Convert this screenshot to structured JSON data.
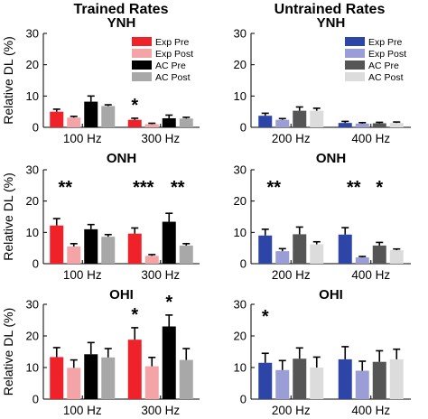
{
  "columns": {
    "left_title": "Trained Rates",
    "right_title": "Untrained Rates"
  },
  "ylabel": "Relative DL (%)",
  "chart_data": [
    {
      "type": "bar",
      "title": "YNH",
      "categories": [
        "100 Hz",
        "300 Hz"
      ],
      "ylim": [
        0,
        30
      ],
      "yticks": [
        0,
        10,
        20,
        30
      ],
      "series": [
        {
          "name": "Exp Pre",
          "color": "#ee2228",
          "values": [
            5.0,
            2.4
          ],
          "errors": [
            0.8,
            0.5
          ]
        },
        {
          "name": "Exp Post",
          "color": "#f4a3a6",
          "values": [
            3.1,
            1.0
          ],
          "errors": [
            0.4,
            0.3
          ]
        },
        {
          "name": "AC Pre",
          "color": "#000000",
          "values": [
            8.2,
            2.9
          ],
          "errors": [
            1.8,
            1.0
          ]
        },
        {
          "name": "AC Post",
          "color": "#a8a8a8",
          "values": [
            6.8,
            2.8
          ],
          "errors": [
            0.4,
            0.4
          ]
        }
      ],
      "significance": [
        {
          "text": "*",
          "category": 1,
          "series": 0
        }
      ],
      "legend": "top-right"
    },
    {
      "type": "bar",
      "title": "YNH",
      "categories": [
        "200 Hz",
        "400 Hz"
      ],
      "ylim": [
        0,
        30
      ],
      "yticks": [
        0,
        10,
        20,
        30
      ],
      "series": [
        {
          "name": "Exp Pre",
          "color": "#2e45a8",
          "values": [
            3.7,
            1.4
          ],
          "errors": [
            0.8,
            0.5
          ]
        },
        {
          "name": "Exp Post",
          "color": "#9b9dd6",
          "values": [
            2.4,
            1.2
          ],
          "errors": [
            0.4,
            0.3
          ]
        },
        {
          "name": "AC Pre",
          "color": "#555555",
          "values": [
            5.3,
            1.3
          ],
          "errors": [
            1.2,
            0.3
          ]
        },
        {
          "name": "AC Post",
          "color": "#dcdcdc",
          "values": [
            5.3,
            1.4
          ],
          "errors": [
            0.8,
            0.3
          ]
        }
      ],
      "significance": [],
      "legend": "top-right"
    },
    {
      "type": "bar",
      "title": "ONH",
      "categories": [
        "100 Hz",
        "300 Hz"
      ],
      "ylim": [
        0,
        30
      ],
      "yticks": [
        0,
        10,
        20,
        30
      ],
      "series": [
        {
          "name": "Exp Pre",
          "color": "#ee2228",
          "values": [
            12.2,
            9.6
          ],
          "errors": [
            2.2,
            1.8
          ]
        },
        {
          "name": "Exp Post",
          "color": "#f4a3a6",
          "values": [
            5.5,
            2.5
          ],
          "errors": [
            0.9,
            0.4
          ]
        },
        {
          "name": "AC Pre",
          "color": "#000000",
          "values": [
            11.0,
            13.4
          ],
          "errors": [
            1.5,
            2.7
          ]
        },
        {
          "name": "AC Post",
          "color": "#a8a8a8",
          "values": [
            8.6,
            5.8
          ],
          "errors": [
            0.7,
            0.6
          ]
        }
      ],
      "significance": [
        {
          "text": "**",
          "category": 0,
          "series": 0
        },
        {
          "text": "***",
          "category": 1,
          "series": 0
        },
        {
          "text": "**",
          "category": 1,
          "series": 2
        }
      ]
    },
    {
      "type": "bar",
      "title": "ONH",
      "categories": [
        "200 Hz",
        "400 Hz"
      ],
      "ylim": [
        0,
        30
      ],
      "yticks": [
        0,
        10,
        20,
        30
      ],
      "series": [
        {
          "name": "Exp Pre",
          "color": "#2e45a8",
          "values": [
            9.0,
            9.3
          ],
          "errors": [
            2.0,
            2.2
          ]
        },
        {
          "name": "Exp Post",
          "color": "#9b9dd6",
          "values": [
            4.0,
            2.0
          ],
          "errors": [
            0.8,
            0.3
          ]
        },
        {
          "name": "AC Pre",
          "color": "#555555",
          "values": [
            9.4,
            5.8
          ],
          "errors": [
            2.3,
            1.0
          ]
        },
        {
          "name": "AC Post",
          "color": "#dcdcdc",
          "values": [
            6.2,
            4.3
          ],
          "errors": [
            0.8,
            0.4
          ]
        }
      ],
      "significance": [
        {
          "text": "**",
          "category": 0,
          "series": 0
        },
        {
          "text": "**",
          "category": 1,
          "series": 0
        },
        {
          "text": "*",
          "category": 1,
          "series": 2
        }
      ]
    },
    {
      "type": "bar",
      "title": "OHI",
      "categories": [
        "100 Hz",
        "300 Hz"
      ],
      "ylim": [
        0,
        30
      ],
      "yticks": [
        0,
        10,
        20,
        30
      ],
      "series": [
        {
          "name": "Exp Pre",
          "color": "#ee2228",
          "values": [
            13.3,
            18.8
          ],
          "errors": [
            3.0,
            3.8
          ]
        },
        {
          "name": "Exp Post",
          "color": "#f4a3a6",
          "values": [
            9.9,
            10.4
          ],
          "errors": [
            2.5,
            2.8
          ]
        },
        {
          "name": "AC Pre",
          "color": "#000000",
          "values": [
            14.2,
            23.0
          ],
          "errors": [
            3.7,
            3.6
          ]
        },
        {
          "name": "AC Post",
          "color": "#a8a8a8",
          "values": [
            13.2,
            12.4
          ],
          "errors": [
            2.8,
            3.6
          ]
        }
      ],
      "significance": [
        {
          "text": "*",
          "category": 1,
          "series": 0
        },
        {
          "text": "*",
          "category": 1,
          "series": 2
        }
      ]
    },
    {
      "type": "bar",
      "title": "OHI",
      "categories": [
        "200 Hz",
        "400 Hz"
      ],
      "ylim": [
        0,
        30
      ],
      "yticks": [
        0,
        10,
        20,
        30
      ],
      "series": [
        {
          "name": "Exp Pre",
          "color": "#2e45a8",
          "values": [
            11.5,
            12.6
          ],
          "errors": [
            3.0,
            4.0
          ]
        },
        {
          "name": "Exp Post",
          "color": "#9b9dd6",
          "values": [
            9.2,
            9.0
          ],
          "errors": [
            3.0,
            3.0
          ]
        },
        {
          "name": "AC Pre",
          "color": "#555555",
          "values": [
            12.8,
            11.8
          ],
          "errors": [
            3.4,
            3.5
          ]
        },
        {
          "name": "AC Post",
          "color": "#dcdcdc",
          "values": [
            10.0,
            12.6
          ],
          "errors": [
            3.3,
            3.2
          ]
        }
      ],
      "significance": [
        {
          "text": "*",
          "category": 0,
          "series": 0
        }
      ]
    }
  ]
}
